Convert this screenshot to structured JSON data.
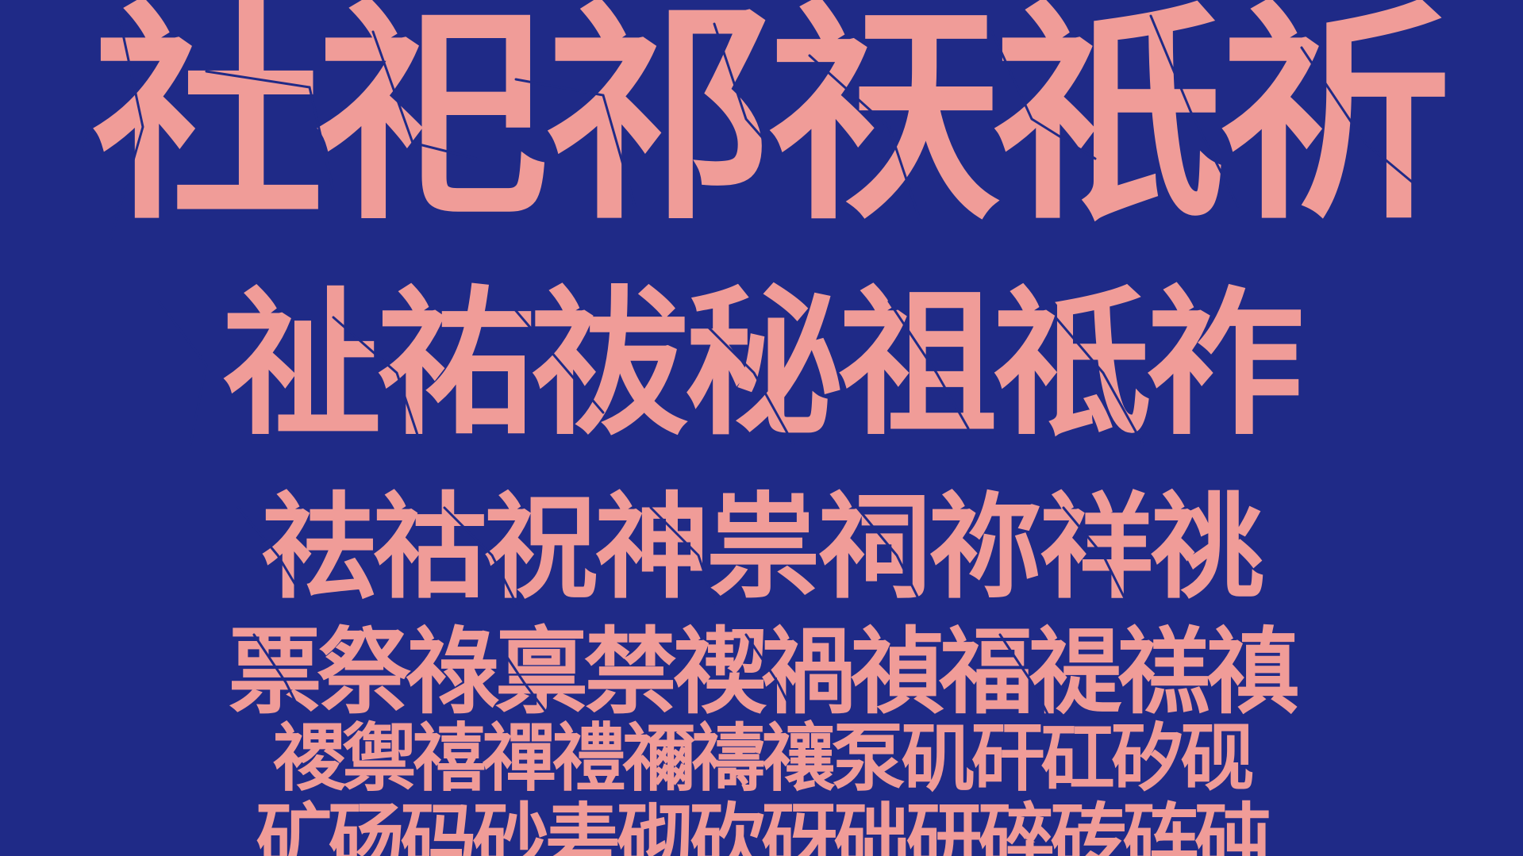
{
  "poster": {
    "background_color": "#1f2a87",
    "text_color": "#f09c98",
    "lines": [
      "社祀祁祆祇祈",
      "祉祐祓秘祖祗祚",
      "祛祜祝神祟祠祢祥祧",
      "票祭祿禀禁禊禍禎福禔禚禛",
      "禝禦禧禪禮禰禱禳泵矶矸矼矽砚",
      "矿砀码砂砉砌砍砑础研碎砖砗砘"
    ]
  }
}
